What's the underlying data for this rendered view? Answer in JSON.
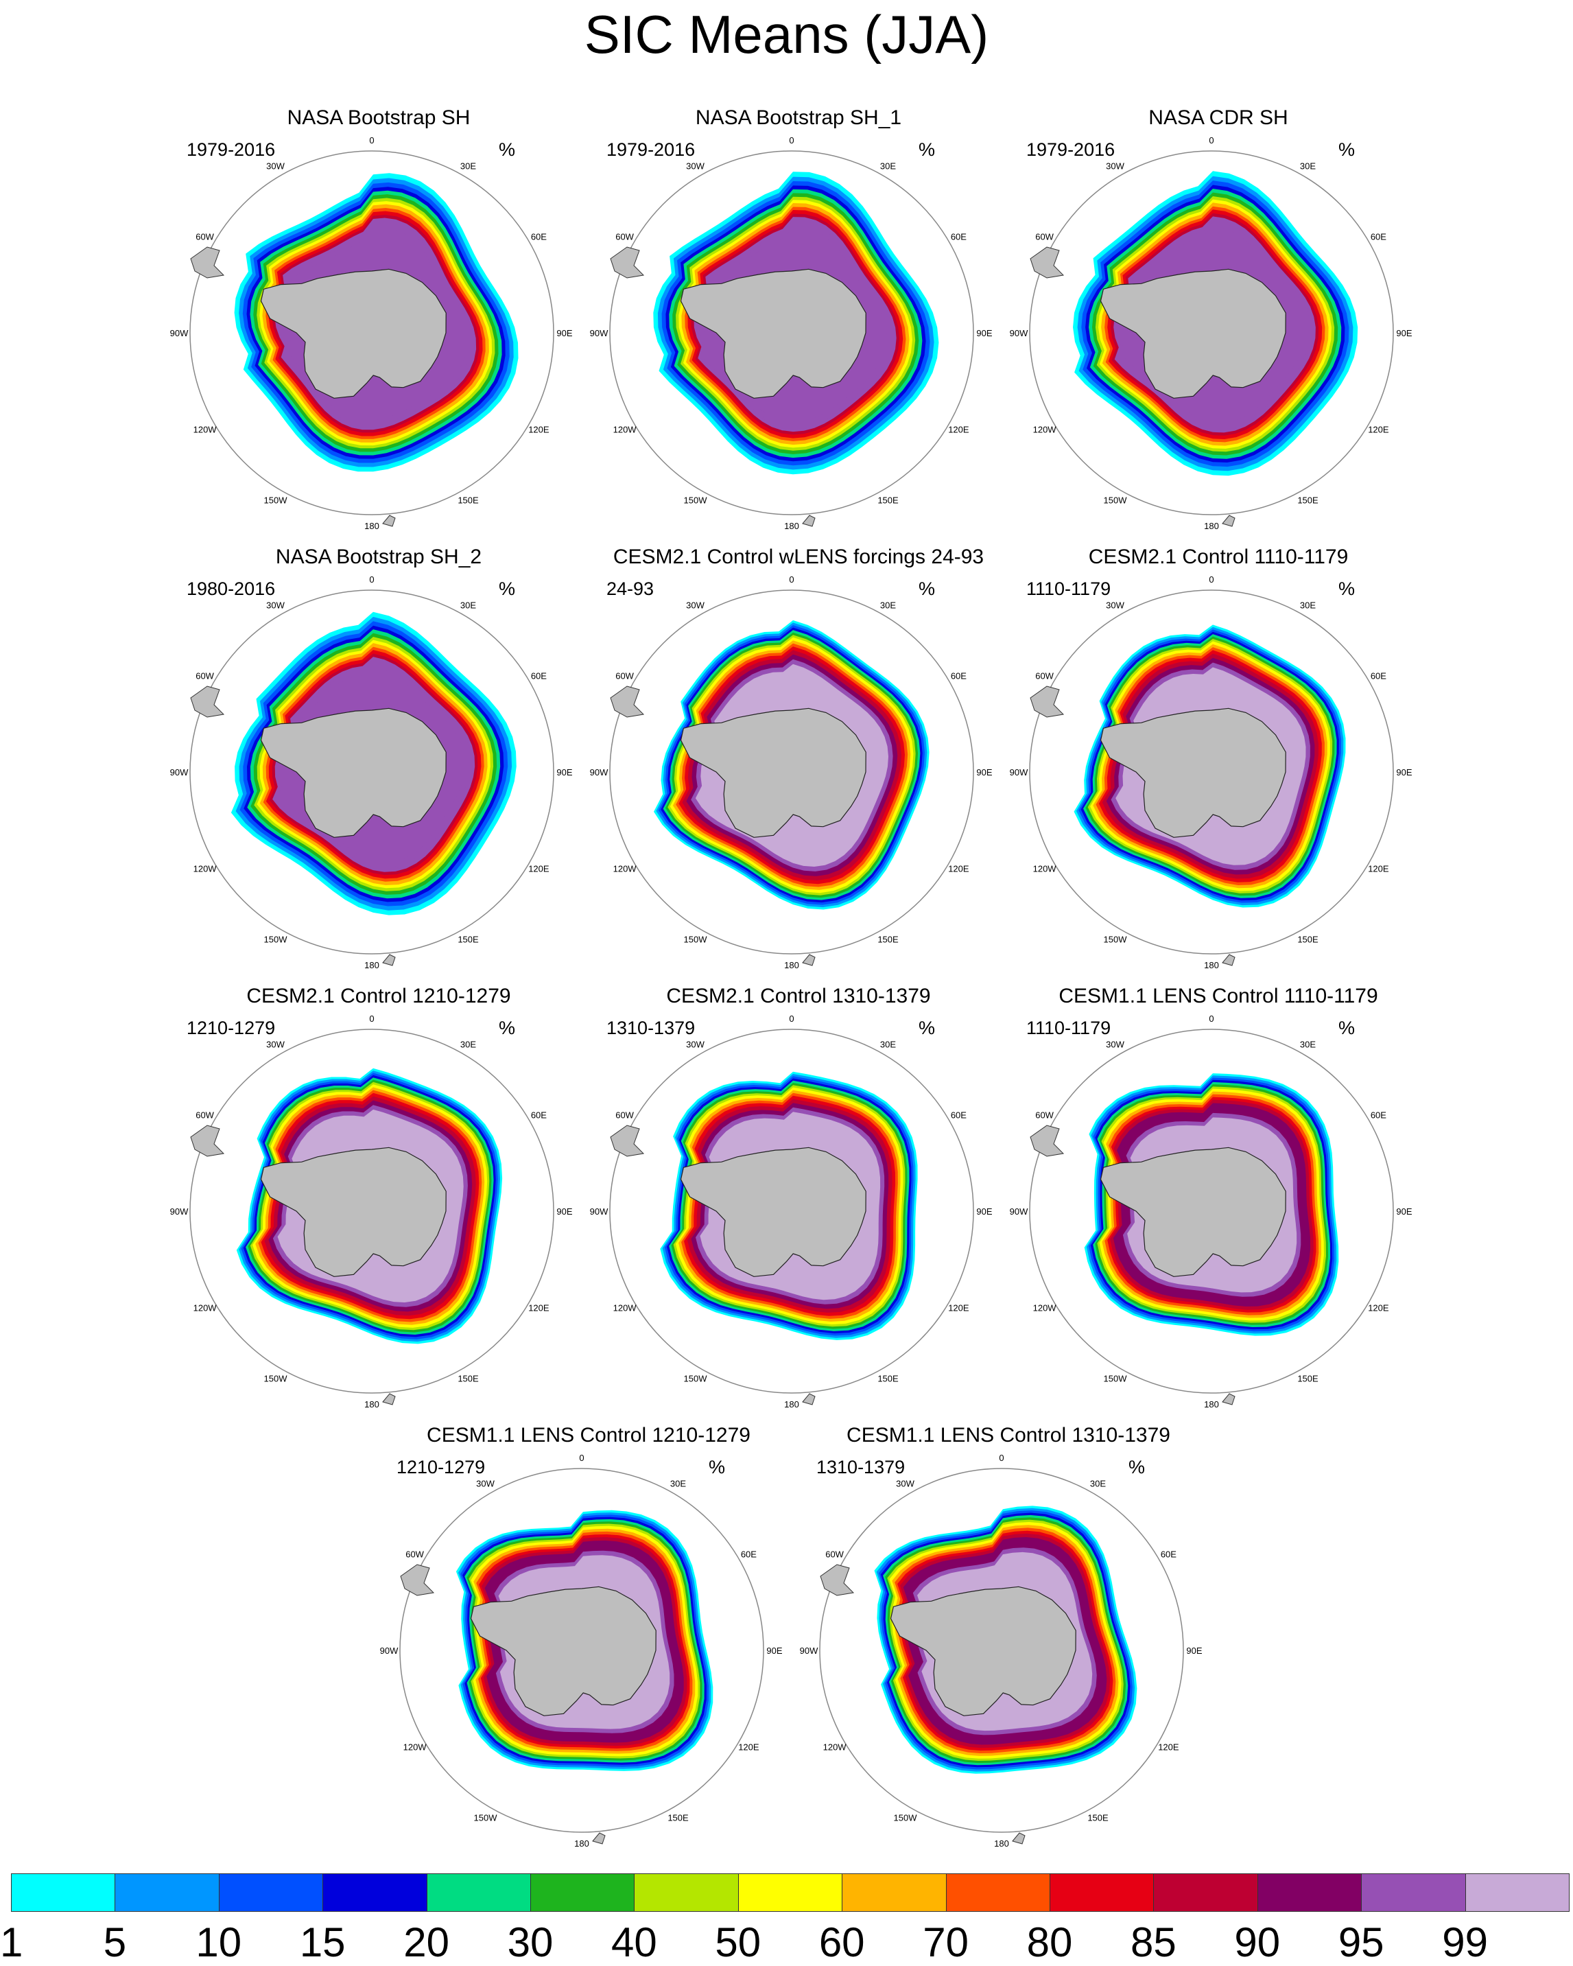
{
  "title": "SIC Means (JJA)",
  "chart_data": [
    {
      "type": "heatmap",
      "projection": "south-polar-stereographic",
      "title": "NASA Bootstrap SH",
      "period": "1979-2016",
      "unit": "%",
      "variant": "obs"
    },
    {
      "type": "heatmap",
      "projection": "south-polar-stereographic",
      "title": "NASA Bootstrap SH_1",
      "period": "1979-2016",
      "unit": "%",
      "variant": "obs"
    },
    {
      "type": "heatmap",
      "projection": "south-polar-stereographic",
      "title": "NASA CDR SH",
      "period": "1979-2016",
      "unit": "%",
      "variant": "obs"
    },
    {
      "type": "heatmap",
      "projection": "south-polar-stereographic",
      "title": "NASA Bootstrap SH_2",
      "period": "1980-2016",
      "unit": "%",
      "variant": "obs"
    },
    {
      "type": "heatmap",
      "projection": "south-polar-stereographic",
      "title": "CESM2.1 Control wLENS forcings 24-93",
      "period": "24-93",
      "unit": "%",
      "variant": "cesm2"
    },
    {
      "type": "heatmap",
      "projection": "south-polar-stereographic",
      "title": "CESM2.1 Control 1110-1179",
      "period": "1110-1179",
      "unit": "%",
      "variant": "cesm2"
    },
    {
      "type": "heatmap",
      "projection": "south-polar-stereographic",
      "title": "CESM2.1 Control 1210-1279",
      "period": "1210-1279",
      "unit": "%",
      "variant": "cesm2"
    },
    {
      "type": "heatmap",
      "projection": "south-polar-stereographic",
      "title": "CESM2.1 Control 1310-1379",
      "period": "1310-1379",
      "unit": "%",
      "variant": "cesm2"
    },
    {
      "type": "heatmap",
      "projection": "south-polar-stereographic",
      "title": "CESM1.1 LENS Control 1110-1179",
      "period": "1110-1179",
      "unit": "%",
      "variant": "cesm1"
    },
    {
      "type": "heatmap",
      "projection": "south-polar-stereographic",
      "title": "CESM1.1 LENS Control 1210-1279",
      "period": "1210-1279",
      "unit": "%",
      "variant": "cesm1"
    },
    {
      "type": "heatmap",
      "projection": "south-polar-stereographic",
      "title": "CESM1.1 LENS Control 1310-1379",
      "period": "1310-1379",
      "unit": "%",
      "variant": "cesm1"
    }
  ],
  "longitude_labels": [
    "0",
    "30E",
    "60E",
    "90E",
    "120E",
    "150E",
    "180",
    "150W",
    "120W",
    "90W",
    "60W",
    "30W"
  ],
  "colorbar": {
    "levels": [
      "1",
      "5",
      "10",
      "15",
      "20",
      "30",
      "40",
      "50",
      "60",
      "70",
      "80",
      "85",
      "90",
      "95",
      "99"
    ],
    "colors": [
      "#00ffff",
      "#0096ff",
      "#0050ff",
      "#0000dc",
      "#00dc82",
      "#1eb41e",
      "#b4e600",
      "#ffff00",
      "#ffb400",
      "#ff5000",
      "#e60014",
      "#be0032",
      "#820064",
      "#9650b4",
      "#c8aad7"
    ]
  },
  "land_color": "#bebebe",
  "variant_bands": {
    "obs": {
      "r": [
        248,
        240,
        233,
        226,
        220,
        214,
        208,
        203,
        198,
        192,
        187,
        181,
        176,
        171,
        168,
        160
      ],
      "c": [
        "#00ffff",
        "#0096ff",
        "#0050ff",
        "#0000dc",
        "#00dc82",
        "#1eb41e",
        "#b4e600",
        "#ffff00",
        "#ffb400",
        "#ff5000",
        "#e60014",
        "#be0032",
        "#9650b4",
        "#9650b4",
        "#9650b4",
        "#9650b4"
      ]
    },
    "cesm2": {
      "r": [
        240,
        236,
        232,
        228,
        224,
        220,
        216,
        212,
        207,
        202,
        197,
        191,
        184,
        176,
        168,
        160
      ],
      "c": [
        "#00ffff",
        "#0096ff",
        "#0050ff",
        "#0000dc",
        "#00dc82",
        "#1eb41e",
        "#b4e600",
        "#ffff00",
        "#ffb400",
        "#ff5000",
        "#e60014",
        "#be0032",
        "#820064",
        "#9650b4",
        "#c8aad7",
        "#c8aad7"
      ]
    },
    "cesm1": {
      "r": [
        240,
        236,
        232,
        228,
        224,
        220,
        216,
        212,
        207,
        202,
        197,
        192,
        186,
        176,
        168,
        160
      ],
      "c": [
        "#00ffff",
        "#0096ff",
        "#0050ff",
        "#0000dc",
        "#00dc82",
        "#1eb41e",
        "#b4e600",
        "#ffff00",
        "#ffb400",
        "#ff5000",
        "#e60014",
        "#be0032",
        "#820064",
        "#820064",
        "#9650b4",
        "#c8aad7"
      ]
    }
  }
}
